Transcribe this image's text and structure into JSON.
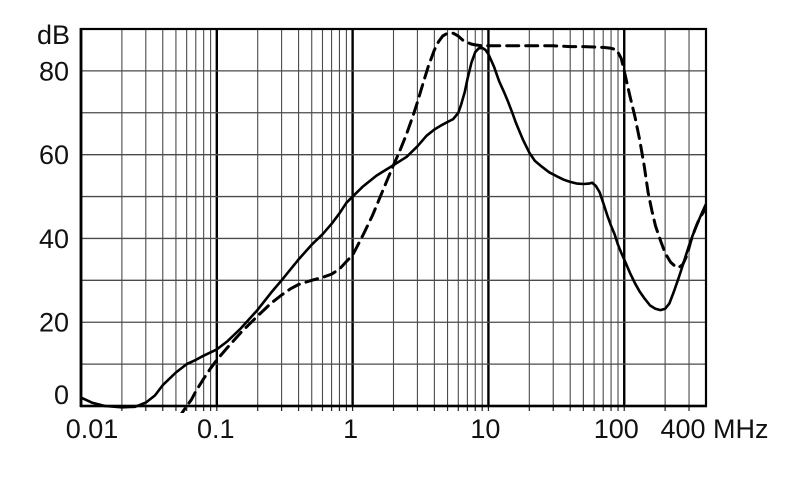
{
  "chart_data": {
    "type": "line",
    "title": "",
    "xlabel": "MHz",
    "ylabel": "dB",
    "x_scale": "log",
    "xlim": [
      0.01,
      400
    ],
    "ylim": [
      0,
      90
    ],
    "grid": "log minor gridlines on, 10 dB horizontal gridlines on",
    "legend_position": "none",
    "x_tick_values": [
      0.01,
      0.1,
      1,
      10,
      100,
      400
    ],
    "x_tick_labels": [
      "0.01",
      "0.1",
      "1",
      "10",
      "100",
      "400"
    ],
    "y_tick_values": [
      0,
      20,
      40,
      60,
      80
    ],
    "y_tick_labels": [
      "0",
      "20",
      "40",
      "60",
      "80"
    ],
    "colors": {
      "axis": "#000000",
      "grid_minor": "#4a4a4a",
      "grid_major": "#000000",
      "curves": "#000000"
    },
    "series": [
      {
        "name": "solid-curve",
        "style": "solid",
        "color": "#000000",
        "points": [
          [
            0.01,
            2
          ],
          [
            0.012,
            0.8
          ],
          [
            0.015,
            0
          ],
          [
            0.02,
            -0.3
          ],
          [
            0.025,
            -0.2
          ],
          [
            0.03,
            0.8
          ],
          [
            0.035,
            2.5
          ],
          [
            0.04,
            5
          ],
          [
            0.05,
            8
          ],
          [
            0.06,
            10
          ],
          [
            0.07,
            11
          ],
          [
            0.08,
            12
          ],
          [
            0.1,
            13.5
          ],
          [
            0.12,
            15.5
          ],
          [
            0.15,
            18.5
          ],
          [
            0.2,
            23
          ],
          [
            0.25,
            27
          ],
          [
            0.3,
            30
          ],
          [
            0.4,
            35
          ],
          [
            0.5,
            38.5
          ],
          [
            0.6,
            41
          ],
          [
            0.7,
            43.5
          ],
          [
            0.8,
            46
          ],
          [
            0.9,
            48.5
          ],
          [
            1,
            50
          ],
          [
            1.2,
            52.5
          ],
          [
            1.5,
            55
          ],
          [
            2,
            57.5
          ],
          [
            2.5,
            59.5
          ],
          [
            3,
            62
          ],
          [
            3.5,
            64.5
          ],
          [
            4,
            66
          ],
          [
            4.5,
            67
          ],
          [
            5,
            67.8
          ],
          [
            5.5,
            68.5
          ],
          [
            6,
            70
          ],
          [
            6.3,
            72
          ],
          [
            6.7,
            75
          ],
          [
            7,
            78
          ],
          [
            7.5,
            82
          ],
          [
            8,
            84.5
          ],
          [
            8.5,
            85.4
          ],
          [
            9,
            85.5
          ],
          [
            9.5,
            85
          ],
          [
            10,
            84
          ],
          [
            11,
            81
          ],
          [
            12,
            77.5
          ],
          [
            13,
            75
          ],
          [
            14,
            72.5
          ],
          [
            15,
            70
          ],
          [
            16,
            67.5
          ],
          [
            18,
            63.5
          ],
          [
            20,
            60.5
          ],
          [
            22,
            58.5
          ],
          [
            25,
            57
          ],
          [
            28,
            55.8
          ],
          [
            32,
            54.8
          ],
          [
            36,
            54
          ],
          [
            40,
            53.5
          ],
          [
            45,
            53.1
          ],
          [
            50,
            53
          ],
          [
            55,
            53.1
          ],
          [
            58,
            53.3
          ],
          [
            62,
            52.5
          ],
          [
            66,
            51
          ],
          [
            70,
            48.5
          ],
          [
            75,
            45.5
          ],
          [
            80,
            43
          ],
          [
            85,
            41
          ],
          [
            90,
            38.5
          ],
          [
            95,
            36.6
          ],
          [
            100,
            35
          ],
          [
            110,
            31.8
          ],
          [
            120,
            29.3
          ],
          [
            130,
            27.3
          ],
          [
            140,
            25.8
          ],
          [
            155,
            24
          ],
          [
            170,
            23.2
          ],
          [
            185,
            22.9
          ],
          [
            200,
            23.2
          ],
          [
            215,
            24.5
          ],
          [
            230,
            27
          ],
          [
            245,
            29.5
          ],
          [
            260,
            32
          ],
          [
            280,
            35.3
          ],
          [
            300,
            38.3
          ],
          [
            320,
            40.8
          ],
          [
            340,
            43
          ],
          [
            370,
            45.8
          ],
          [
            400,
            48.2
          ]
        ]
      },
      {
        "name": "dashed-curve",
        "style": "dashed",
        "color": "#000000",
        "points": [
          [
            0.052,
            -3
          ],
          [
            0.06,
            0
          ],
          [
            0.065,
            1.5
          ],
          [
            0.07,
            3.5
          ],
          [
            0.08,
            6.5
          ],
          [
            0.09,
            9
          ],
          [
            0.1,
            11
          ],
          [
            0.12,
            14
          ],
          [
            0.15,
            17.5
          ],
          [
            0.2,
            21.5
          ],
          [
            0.25,
            24.5
          ],
          [
            0.3,
            26.5
          ],
          [
            0.35,
            28
          ],
          [
            0.4,
            29
          ],
          [
            0.5,
            30
          ],
          [
            0.6,
            30.7
          ],
          [
            0.7,
            31.5
          ],
          [
            0.8,
            32.7
          ],
          [
            0.9,
            34.5
          ],
          [
            1,
            36
          ],
          [
            1.2,
            41
          ],
          [
            1.4,
            45.5
          ],
          [
            1.6,
            50
          ],
          [
            1.8,
            54
          ],
          [
            2,
            57.5
          ],
          [
            2.2,
            60.5
          ],
          [
            2.5,
            65
          ],
          [
            2.8,
            69.5
          ],
          [
            3,
            72.5
          ],
          [
            3.3,
            77
          ],
          [
            3.6,
            81
          ],
          [
            4,
            85
          ],
          [
            4.3,
            87
          ],
          [
            4.6,
            88.3
          ],
          [
            5,
            89
          ],
          [
            5.5,
            89
          ],
          [
            6,
            88.3
          ],
          [
            6.5,
            87.3
          ],
          [
            7,
            86.8
          ],
          [
            7.5,
            86.4
          ],
          [
            8,
            86.2
          ],
          [
            9,
            86
          ],
          [
            10,
            86
          ],
          [
            12,
            86
          ],
          [
            15,
            86
          ],
          [
            20,
            86
          ],
          [
            25,
            86
          ],
          [
            30,
            86
          ],
          [
            40,
            85.8
          ],
          [
            50,
            85.8
          ],
          [
            60,
            85.7
          ],
          [
            70,
            85.6
          ],
          [
            80,
            85.4
          ],
          [
            88,
            85
          ],
          [
            95,
            83
          ],
          [
            100,
            80
          ],
          [
            105,
            77
          ],
          [
            110,
            74
          ],
          [
            120,
            69
          ],
          [
            130,
            63.5
          ],
          [
            140,
            57.5
          ],
          [
            150,
            51
          ],
          [
            160,
            46.5
          ],
          [
            170,
            43
          ],
          [
            185,
            39.5
          ],
          [
            200,
            36.5
          ],
          [
            220,
            34.3
          ],
          [
            240,
            33.2
          ],
          [
            250,
            33
          ],
          [
            270,
            33.8
          ],
          [
            290,
            36
          ],
          [
            310,
            39.5
          ],
          [
            330,
            42
          ],
          [
            350,
            44
          ],
          [
            375,
            45.8
          ],
          [
            400,
            47.3
          ]
        ]
      }
    ]
  }
}
